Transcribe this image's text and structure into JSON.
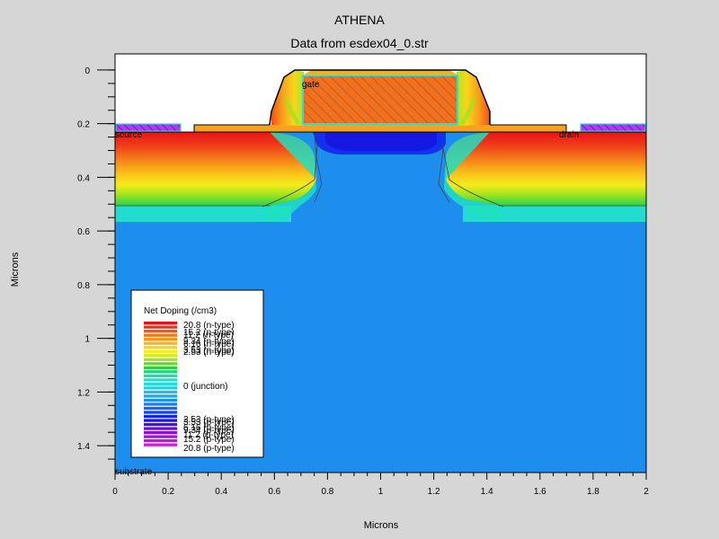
{
  "title": "ATHENA",
  "subtitle": "Data from esdex04_0.str",
  "x_axis": {
    "label": "Microns",
    "range": [
      0,
      2
    ],
    "ticks": [
      {
        "v": 0,
        "label": "0"
      },
      {
        "v": 0.2,
        "label": "0.2"
      },
      {
        "v": 0.4,
        "label": "0.4"
      },
      {
        "v": 0.6,
        "label": "0.6"
      },
      {
        "v": 0.8,
        "label": "0.8"
      },
      {
        "v": 1.0,
        "label": "1"
      },
      {
        "v": 1.2,
        "label": "1.2"
      },
      {
        "v": 1.4,
        "label": "1.4"
      },
      {
        "v": 1.6,
        "label": "1.6"
      },
      {
        "v": 1.8,
        "label": "1.8"
      },
      {
        "v": 2.0,
        "label": "2"
      }
    ]
  },
  "y_axis": {
    "label": "Microns",
    "range": [
      -0.06,
      1.5
    ],
    "inverted": true,
    "ticks": [
      {
        "v": 0,
        "label": "0"
      },
      {
        "v": 0.2,
        "label": "0.2"
      },
      {
        "v": 0.4,
        "label": "0.4"
      },
      {
        "v": 0.6,
        "label": "0.6"
      },
      {
        "v": 0.8,
        "label": "0.8"
      },
      {
        "v": 1.0,
        "label": "1"
      },
      {
        "v": 1.2,
        "label": "1.2"
      },
      {
        "v": 1.4,
        "label": "1.4"
      }
    ]
  },
  "region_labels": {
    "gate": "gate",
    "source": "source",
    "drain": "drain",
    "substrate": "substrate"
  },
  "legend": {
    "title": "Net Doping (/cm3)",
    "entries": [
      "20.8 (n-type)",
      "15.2 (n-type)",
      "11.2 (n-type)",
      "9.34 (n-type)",
      "6.16 (n-type)",
      "3.53 (n-type)",
      "2.53 (n-type)",
      "0 (junction)",
      "2.53 (p-type)",
      "3.53 (p-type)",
      "6.16 (p-type)",
      "9.34 (p-type)",
      "11.2 (p-type)",
      "15.2 (p-type)",
      "20.8 (p-type)"
    ],
    "colors": [
      "#e8141a",
      "#ee3419",
      "#f25418",
      "#f47418",
      "#f7941a",
      "#f9b41a",
      "#fbd31c",
      "#f4ec1a",
      "#d4ea1c",
      "#a6e41f",
      "#6ad829",
      "#2fd23a",
      "#1ed37c",
      "#1fdcae",
      "#20e1cc",
      "#22dcd8",
      "#23cfe0",
      "#23bde6",
      "#21a6ea",
      "#1e90f0",
      "#1c7cf5",
      "#1a64f8",
      "#1446f4",
      "#1028ee",
      "#2313e4",
      "#4510da",
      "#6a10d4",
      "#8612d4",
      "#a414d4",
      "#bb18d6",
      "#cf1cda"
    ]
  },
  "colors": {
    "background": "#d6d6d6",
    "plot_bg": "#ffffff",
    "substrate": "#1e8eee",
    "pplus": "#1a3df0",
    "gate_fill": "#f07020",
    "gate_outline": "#23e0d8",
    "contact": "#a22cf0",
    "oxide": "#f5a31f"
  }
}
